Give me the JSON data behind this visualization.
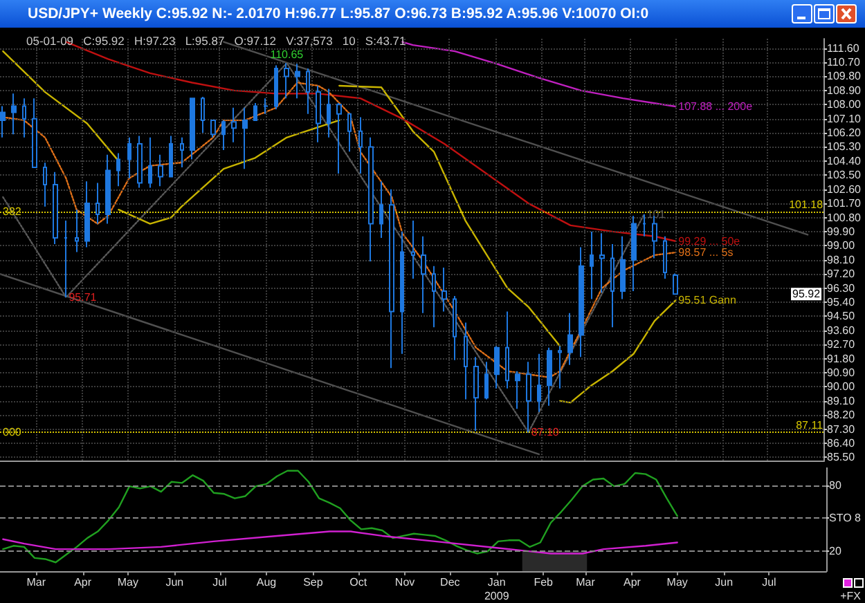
{
  "chart_data": [
    {
      "type": "candlestick",
      "title": "USD/JPY+ Weekly C:95.92 N:- 2.0170 H:96.77 L:95.87 O:96.73 B:95.92 A:95.96 V:10070 OI:0",
      "subtitle": "05-01-09   C:95.92   H:97.23   L:95.87   O:97.12   V:37,573   10   S:43.71",
      "x": [
        "2008-02-08",
        "2008-02-15",
        "2008-02-22",
        "2008-02-29",
        "2008-03-07",
        "2008-03-14",
        "2008-03-21",
        "2008-03-28",
        "2008-04-04",
        "2008-04-11",
        "2008-04-18",
        "2008-04-25",
        "2008-05-02",
        "2008-05-09",
        "2008-05-16",
        "2008-05-23",
        "2008-05-30",
        "2008-06-06",
        "2008-06-13",
        "2008-06-20",
        "2008-06-27",
        "2008-07-04",
        "2008-07-11",
        "2008-07-18",
        "2008-07-25",
        "2008-08-01",
        "2008-08-08",
        "2008-08-15",
        "2008-08-22",
        "2008-08-29",
        "2008-09-05",
        "2008-09-12",
        "2008-09-19",
        "2008-09-26",
        "2008-10-03",
        "2008-10-10",
        "2008-10-17",
        "2008-10-24",
        "2008-10-31",
        "2008-11-07",
        "2008-11-14",
        "2008-11-21",
        "2008-11-28",
        "2008-12-05",
        "2008-12-12",
        "2008-12-19",
        "2008-12-26",
        "2009-01-02",
        "2009-01-09",
        "2009-01-16",
        "2009-01-23",
        "2009-01-30",
        "2009-02-06",
        "2009-02-13",
        "2009-02-20",
        "2009-02-27",
        "2009-03-06",
        "2009-03-13",
        "2009-03-20",
        "2009-03-27",
        "2009-04-03",
        "2009-04-10",
        "2009-04-17",
        "2009-04-24",
        "2009-05-01"
      ],
      "ohlc": [
        [
          107.0,
          107.9,
          105.9,
          107.5
        ],
        [
          107.5,
          108.7,
          106.1,
          107.9
        ],
        [
          107.9,
          108.4,
          105.9,
          107.1
        ],
        [
          107.1,
          108.4,
          104.0,
          104.0
        ],
        [
          104.0,
          104.3,
          101.5,
          102.9
        ],
        [
          102.9,
          103.7,
          99.1,
          99.5
        ],
        [
          99.5,
          100.6,
          95.71,
          99.5
        ],
        [
          99.5,
          101.3,
          98.6,
          99.3
        ],
        [
          99.3,
          103.1,
          98.9,
          101.7
        ],
        [
          101.7,
          103.0,
          100.4,
          101.0
        ],
        [
          101.0,
          104.8,
          100.4,
          103.8
        ],
        [
          103.8,
          104.9,
          102.8,
          104.5
        ],
        [
          104.5,
          105.9,
          103.3,
          105.5
        ],
        [
          105.5,
          106.0,
          102.7,
          103.0
        ],
        [
          103.0,
          105.9,
          102.7,
          104.1
        ],
        [
          104.1,
          104.8,
          102.8,
          103.4
        ],
        [
          103.4,
          106.0,
          103.4,
          105.5
        ],
        [
          105.5,
          105.9,
          104.0,
          105.1
        ],
        [
          105.1,
          108.4,
          104.5,
          108.4
        ],
        [
          108.4,
          108.5,
          106.2,
          107.0
        ],
        [
          107.0,
          107.0,
          105.9,
          106.1
        ],
        [
          106.1,
          107.0,
          105.1,
          106.9
        ],
        [
          106.9,
          107.8,
          105.6,
          106.5
        ],
        [
          106.5,
          107.8,
          103.9,
          107.0
        ],
        [
          107.0,
          108.1,
          107.0,
          107.9
        ],
        [
          107.9,
          108.4,
          107.4,
          107.9
        ],
        [
          107.9,
          110.5,
          107.7,
          110.3
        ],
        [
          110.3,
          110.65,
          108.4,
          109.8
        ],
        [
          109.8,
          110.6,
          108.4,
          110.1
        ],
        [
          110.1,
          110.3,
          107.4,
          108.8
        ],
        [
          108.8,
          109.2,
          105.6,
          106.8
        ],
        [
          106.8,
          109.0,
          105.9,
          108.0
        ],
        [
          108.0,
          108.1,
          103.6,
          107.4
        ],
        [
          107.4,
          107.4,
          105.0,
          106.3
        ],
        [
          106.3,
          107.2,
          103.6,
          105.3
        ],
        [
          105.3,
          105.9,
          98.0,
          100.4
        ],
        [
          100.4,
          103.1,
          99.5,
          101.6
        ],
        [
          101.6,
          102.6,
          91.2,
          94.8
        ],
        [
          94.8,
          99.9,
          92.1,
          98.6
        ],
        [
          98.6,
          100.6,
          96.9,
          98.4
        ],
        [
          98.4,
          99.6,
          94.7,
          97.2
        ],
        [
          97.2,
          97.7,
          93.8,
          96.1
        ],
        [
          96.1,
          97.6,
          94.8,
          95.6
        ],
        [
          95.6,
          95.8,
          91.7,
          93.2
        ],
        [
          93.2,
          94.1,
          89.2,
          91.3
        ],
        [
          91.3,
          91.9,
          87.2,
          89.3
        ],
        [
          89.3,
          91.6,
          89.2,
          90.8
        ],
        [
          90.8,
          92.6,
          89.9,
          92.5
        ],
        [
          92.5,
          94.8,
          89.9,
          90.4
        ],
        [
          90.4,
          91.0,
          88.6,
          90.8
        ],
        [
          90.8,
          91.6,
          87.1,
          89.1
        ],
        [
          89.1,
          92.1,
          88.4,
          90.1
        ],
        [
          90.1,
          92.5,
          88.8,
          92.3
        ],
        [
          92.3,
          92.6,
          89.9,
          92.2
        ],
        [
          92.2,
          94.7,
          91.4,
          93.3
        ],
        [
          93.3,
          98.9,
          91.9,
          97.7
        ],
        [
          97.7,
          99.9,
          95.6,
          98.4
        ],
        [
          98.4,
          99.8,
          96.0,
          98.2
        ],
        [
          98.2,
          99.1,
          93.8,
          96.1
        ],
        [
          96.1,
          99.6,
          95.6,
          98.1
        ],
        [
          98.1,
          100.9,
          96.1,
          100.4
        ],
        [
          100.4,
          101,
          99.6,
          100.4
        ],
        [
          100.4,
          100.9,
          98.2,
          99.3
        ],
        [
          99.3,
          99.6,
          96.9,
          97.3
        ],
        [
          97.12,
          97.23,
          95.87,
          95.92
        ]
      ],
      "color": "#1e78e0",
      "series": [
        {
          "type": "line",
          "color": "#505050",
          "line_style": "solid",
          "x": [
            "2008-07-04",
            "2009-07-28"
          ],
          "values": [
            112.0,
            99.7
          ]
        },
        {
          "type": "line",
          "color": "#505050",
          "line_style": "solid",
          "x": [
            "2008-02-06",
            "2009-01-30"
          ],
          "values": [
            97.2,
            85.7
          ]
        },
        {
          "type": "line",
          "color": "#5a5a5a",
          "line_style": "dotted",
          "x": [
            "2008-02-08",
            "2008-03-21",
            "2008-08-15",
            "2009-01-23",
            "2009-04-10"
          ],
          "values": [
            102.1,
            95.71,
            110.65,
            87.1,
            101
          ]
        },
        {
          "type": "line",
          "color": "#c8b400",
          "line_style": "solid",
          "x": [
            "2008-02-08",
            "2008-03-07",
            "2008-04-04",
            "2008-04-25"
          ],
          "values": [
            111.4,
            108.8,
            106.8,
            104.4
          ]
        },
        {
          "type": "line",
          "color": "#c8b400",
          "line_style": "solid",
          "x": [
            "2008-04-25",
            "2008-05-16",
            "2008-05-30",
            "2008-06-06",
            "2008-07-04",
            "2008-07-25",
            "2008-08-15",
            "2008-09-19"
          ],
          "values": [
            101.3,
            100.4,
            100.8,
            101.5,
            103.9,
            104.6,
            105.9,
            107.0
          ]
        },
        {
          "type": "line",
          "color": "#c8b400",
          "line_style": "solid",
          "x": [
            "2008-09-19",
            "2008-10-17",
            "2008-11-07",
            "2008-11-21",
            "2008-12-12",
            "2009-01-09",
            "2009-01-23",
            "2009-02-13"
          ],
          "values": [
            109.2,
            109.1,
            106.3,
            105.0,
            100.6,
            96.3,
            95.1,
            92.6
          ]
        },
        {
          "type": "line",
          "color": "#c8b400",
          "line_style": "solid",
          "x": [
            "2009-02-13",
            "2009-02-20",
            "2009-03-06",
            "2009-03-20",
            "2009-04-03",
            "2009-04-17",
            "2009-05-01"
          ],
          "values": [
            89.1,
            89.0,
            90.1,
            91.0,
            92.1,
            94.2,
            95.51
          ]
        },
        {
          "type": "line",
          "color": "#c01010",
          "line_style": "solid",
          "x": [
            "2008-03-21",
            "2008-04-18",
            "2008-05-16",
            "2008-06-13",
            "2008-07-11",
            "2008-08-08",
            "2008-09-05",
            "2008-10-03",
            "2008-10-31",
            "2008-11-28",
            "2008-12-26",
            "2009-01-23",
            "2009-02-20",
            "2009-03-20",
            "2009-04-17",
            "2009-05-01"
          ],
          "values": [
            112.0,
            110.9,
            110.0,
            109.4,
            108.9,
            108.7,
            108.7,
            108.4,
            107.1,
            105.5,
            103.6,
            101.7,
            100.3,
            99.9,
            99.6,
            99.29
          ]
        },
        {
          "type": "line",
          "color": "#c020c0",
          "line_style": "solid",
          "x": [
            "2008-10-31",
            "2008-11-07",
            "2008-12-05",
            "2009-01-02",
            "2009-01-30",
            "2009-02-27",
            "2009-03-27",
            "2009-05-01"
          ],
          "values": [
            112.0,
            111.8,
            111.4,
            110.6,
            109.7,
            108.9,
            108.4,
            107.88
          ]
        },
        {
          "type": "line",
          "color": "#e07018",
          "line_style": "dotted",
          "x": [
            "2008-02-08",
            "2008-02-22",
            "2008-03-07",
            "2008-03-21",
            "2008-03-28",
            "2008-04-11",
            "2008-04-18",
            "2008-05-02",
            "2008-05-16",
            "2008-06-06",
            "2008-06-27",
            "2008-07-04",
            "2008-07-18",
            "2008-08-08",
            "2008-08-22",
            "2008-09-05",
            "2008-09-12",
            "2008-09-26",
            "2008-10-03",
            "2008-10-24",
            "2008-10-31",
            "2008-11-14",
            "2008-12-05",
            "2008-12-19",
            "2009-01-09",
            "2009-02-06",
            "2009-02-13",
            "2009-02-27",
            "2009-03-13",
            "2009-03-27",
            "2009-04-17",
            "2009-05-01"
          ],
          "values": [
            107.2,
            107.0,
            105.9,
            103.3,
            101.3,
            100.4,
            100.9,
            103.3,
            104.1,
            104.3,
            105.9,
            107.0,
            107.0,
            107.8,
            109.4,
            109.2,
            108.8,
            107.4,
            105.0,
            102.1,
            99.8,
            98.0,
            94.8,
            92.5,
            91.0,
            90.6,
            91.0,
            93.6,
            96.3,
            97.4,
            98.4,
            98.57
          ]
        }
      ],
      "xlim": [
        "2008-02-06",
        "2009-08-08"
      ],
      "xticks": [
        "2008-03-01",
        "2008-04-01",
        "2008-05-01",
        "2008-06-01",
        "2008-07-01",
        "2008-08-01",
        "2008-09-01",
        "2008-10-01",
        "2008-11-01",
        "2008-12-01",
        "2009-01-01",
        "2009-02-01",
        "2009-03-01",
        "2009-04-01",
        "2009-05-01",
        "2009-06-01",
        "2009-07-01"
      ],
      "ylim": [
        85.3,
        112.2
      ],
      "yticks": [
        {
          "value": 85.5,
          "label": "85.50"
        },
        {
          "value": 86.4,
          "label": "86.40"
        },
        {
          "value": 87.3,
          "label": "87.30"
        },
        {
          "value": 88.2,
          "label": "88.20"
        },
        {
          "value": 89.1,
          "label": "89.10"
        },
        {
          "value": 90.0,
          "label": "90.00"
        },
        {
          "value": 90.9,
          "label": "90.90"
        },
        {
          "value": 91.8,
          "label": "91.80"
        },
        {
          "value": 92.7,
          "label": "92.70"
        },
        {
          "value": 93.6,
          "label": "93.60"
        },
        {
          "value": 94.5,
          "label": "94.50"
        },
        {
          "value": 95.4,
          "label": "95.40"
        },
        {
          "value": 96.3,
          "label": "96.30"
        },
        {
          "value": 97.2,
          "label": "97.20"
        },
        {
          "value": 98.1,
          "label": "98.10"
        },
        {
          "value": 99.0,
          "label": "99.00"
        },
        {
          "value": 99.9,
          "label": "99.90"
        },
        {
          "value": 100.8,
          "label": "100.80"
        },
        {
          "value": 101.7,
          "label": "101.70"
        },
        {
          "value": 102.6,
          "label": "102.60"
        },
        {
          "value": 103.5,
          "label": "103.50"
        },
        {
          "value": 104.4,
          "label": "104.40"
        },
        {
          "value": 105.3,
          "label": "105.30"
        },
        {
          "value": 106.2,
          "label": "106.20"
        },
        {
          "value": 107.1,
          "label": "107.10"
        },
        {
          "value": 108.0,
          "label": "108.00"
        },
        {
          "value": 108.9,
          "label": "108.90"
        },
        {
          "value": 109.8,
          "label": "109.80"
        },
        {
          "value": 110.7,
          "label": "110.70"
        },
        {
          "value": 111.6,
          "label": "111.60"
        }
      ],
      "grid": true,
      "tick_labels": "y",
      "ref_lines": [
        {
          "axis": "y",
          "value": 101.18,
          "label": "101.18",
          "color": "#d8c800",
          "line_style": "dotted"
        },
        {
          "axis": "y",
          "value": 87.11,
          "label": "87.11",
          "color": "#d8c800",
          "line_style": "dotted"
        }
      ],
      "annotations": [
        {
          "text": "110.65",
          "x": "2008-08-15",
          "y": 110.65
        },
        {
          "text": "95.71",
          "x": "2008-03-21",
          "y": 95.71
        },
        {
          "text": "87.10",
          "x": "2009-01-23",
          "y": 87.1
        },
        {
          "text": "101",
          "x": "2009-04-10",
          "y": 101
        },
        {
          "text": "382",
          "x": "2008-02-06",
          "y": 101.18
        },
        {
          "text": "000",
          "x": "2008-02-06",
          "y": 87.11
        },
        {
          "text": "99.29 ... 50e",
          "x": "2009-05-01",
          "y": 99.29
        },
        {
          "text": "98.57 ... 5s",
          "x": "2009-05-01",
          "y": 98.57
        },
        {
          "text": "95.51 Gann",
          "x": "2009-05-01",
          "y": 95.51
        },
        {
          "text": "107.88 ... 200e",
          "x": "2009-05-01",
          "y": 107.88
        },
        {
          "text": "95.92",
          "y": 95.92
        }
      ]
    },
    {
      "type": "line",
      "x": [
        "2008-02-08",
        "2008-02-15",
        "2008-02-22",
        "2008-02-29",
        "2008-03-07",
        "2008-03-14",
        "2008-03-21",
        "2008-03-28",
        "2008-04-04",
        "2008-04-11",
        "2008-04-18",
        "2008-04-25",
        "2008-05-02",
        "2008-05-09",
        "2008-05-16",
        "2008-05-23",
        "2008-05-30",
        "2008-06-06",
        "2008-06-13",
        "2008-06-20",
        "2008-06-27",
        "2008-07-04",
        "2008-07-11",
        "2008-07-18",
        "2008-07-25",
        "2008-08-01",
        "2008-08-08",
        "2008-08-15",
        "2008-08-22",
        "2008-08-29",
        "2008-09-05",
        "2008-09-12",
        "2008-09-19",
        "2008-09-26",
        "2008-10-03",
        "2008-10-10",
        "2008-10-17",
        "2008-10-24",
        "2008-10-31",
        "2008-11-07",
        "2008-11-14",
        "2008-11-21",
        "2008-11-28",
        "2008-12-05",
        "2008-12-12",
        "2008-12-19",
        "2008-12-26",
        "2009-01-02",
        "2009-01-09",
        "2009-01-16",
        "2009-01-23",
        "2009-01-30",
        "2009-02-06",
        "2009-02-13",
        "2009-02-20",
        "2009-02-27",
        "2009-03-06",
        "2009-03-13",
        "2009-03-20",
        "2009-03-27",
        "2009-04-03",
        "2009-04-10",
        "2009-04-17",
        "2009-04-24",
        "2009-05-01"
      ],
      "series": [
        {
          "color": "#20a020",
          "values": [
            22,
            25,
            24,
            14,
            13,
            10,
            17,
            24,
            32,
            38,
            48,
            60,
            79,
            77,
            79,
            74,
            83,
            82,
            89,
            84,
            73,
            72,
            68,
            70,
            79,
            81,
            88,
            93,
            93,
            83,
            68,
            64,
            59,
            48,
            40,
            41,
            39,
            32,
            34,
            36,
            35,
            34,
            30,
            25,
            21,
            18,
            20,
            29,
            30,
            30,
            24,
            28,
            46,
            56,
            67,
            79,
            85,
            86,
            79,
            81,
            91,
            90,
            85,
            68,
            52
          ]
        },
        {
          "color": "#d020d0",
          "x": [
            "2008-02-08",
            "2008-02-22",
            "2008-03-14",
            "2008-04-18",
            "2008-05-23",
            "2008-06-27",
            "2008-08-08",
            "2008-09-12",
            "2008-09-26",
            "2008-10-17",
            "2008-11-21",
            "2009-01-02",
            "2009-02-06",
            "2009-02-27",
            "2009-03-13",
            "2009-04-10",
            "2009-05-01"
          ],
          "values": [
            31,
            27,
            22,
            22,
            24,
            29,
            34,
            38,
            38,
            34,
            29,
            23,
            18,
            18,
            22,
            25,
            28
          ]
        }
      ],
      "xlim": [
        "2008-02-06",
        "2009-08-08"
      ],
      "xticks": [
        {
          "value": "2008-03-01",
          "label": "Mar"
        },
        {
          "value": "2008-04-01",
          "label": "Apr"
        },
        {
          "value": "2008-05-01",
          "label": "May"
        },
        {
          "value": "2008-06-01",
          "label": "Jun"
        },
        {
          "value": "2008-07-01",
          "label": "Jul"
        },
        {
          "value": "2008-08-01",
          "label": "Aug"
        },
        {
          "value": "2008-09-01",
          "label": "Sep"
        },
        {
          "value": "2008-10-01",
          "label": "Oct"
        },
        {
          "value": "2008-11-01",
          "label": "Nov"
        },
        {
          "value": "2008-12-01",
          "label": "Dec"
        },
        {
          "value": "2009-01-01",
          "label": "Jan\n2009"
        },
        {
          "value": "2009-02-01",
          "label": "Feb"
        },
        {
          "value": "2009-03-01",
          "label": "Mar"
        },
        {
          "value": "2009-04-01",
          "label": "Apr"
        },
        {
          "value": "2009-05-01",
          "label": "May"
        },
        {
          "value": "2009-06-01",
          "label": "Jun"
        },
        {
          "value": "2009-07-01",
          "label": "Jul"
        }
      ],
      "ylim": [
        2,
        96
      ],
      "yticks": [
        20,
        {
          "value": 50,
          "label": "STO 8"
        },
        80
      ],
      "grid": "y",
      "bands": [
        {
          "axis": "x",
          "from": "2009-01-18",
          "to": "2009-03-02",
          "color": "#2a2a2a"
        }
      ],
      "annotations": [
        "+FX"
      ]
    }
  ]
}
